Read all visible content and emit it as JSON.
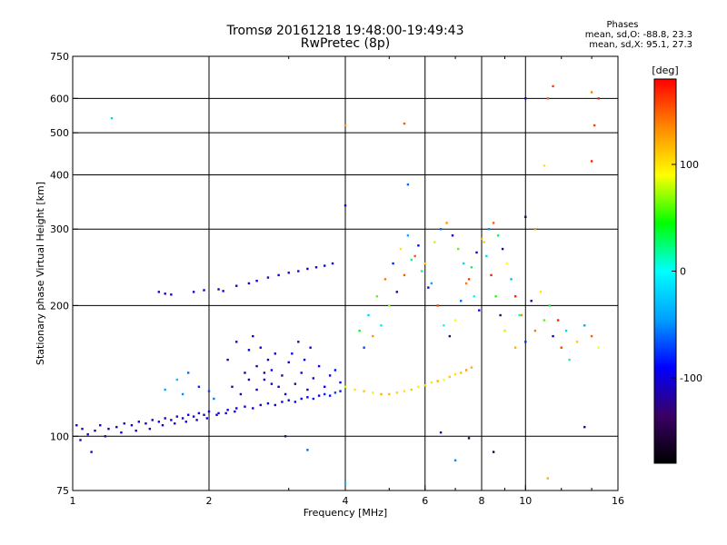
{
  "header": {
    "title_line1": "Tromsø 20161218 19:48:00-19:49:43",
    "title_line2": "RwPretec (8p)"
  },
  "stats": {
    "heading": "Phases",
    "line_O": "mean, sd,O: -88.8, 23.3",
    "line_X": "mean, sd,X:  95.1, 27.3"
  },
  "chart_data": {
    "type": "scatter",
    "xlabel": "Frequency [MHz]",
    "ylabel": "Stationary phase Virtual Height [km]",
    "xscale": "log",
    "yscale": "log",
    "xlim": [
      1,
      16
    ],
    "ylim": [
      75,
      750
    ],
    "xticks": [
      1,
      2,
      4,
      6,
      8,
      10,
      16
    ],
    "xtick_labels": [
      "1",
      "2",
      "4",
      "6",
      "8",
      "10",
      "16"
    ],
    "yticks": [
      75,
      100,
      200,
      300,
      400,
      500,
      600,
      750
    ],
    "ytick_labels": [
      "75",
      "100",
      "200",
      "300",
      "400",
      "500",
      "600",
      "750"
    ],
    "grid_x": [
      2,
      4,
      6,
      8,
      10
    ],
    "grid_y": [
      100,
      200,
      300,
      400,
      500,
      600
    ],
    "colorbar": {
      "label": "[deg]",
      "range": [
        -180,
        180
      ],
      "ticks": [
        -100,
        0,
        100
      ],
      "tick_labels": [
        "-100",
        "0",
        "100"
      ],
      "colormap": [
        "#000000",
        "#3a0066",
        "#0000ff",
        "#00a0ff",
        "#00ffff",
        "#00ff00",
        "#ffff00",
        "#ff8800",
        "#ff0000"
      ]
    },
    "series": [
      {
        "points": [
          [
            1.02,
            106,
            -110
          ],
          [
            1.05,
            104,
            -105
          ],
          [
            1.08,
            101,
            -98
          ],
          [
            1.12,
            103,
            -112
          ],
          [
            1.15,
            106,
            -100
          ],
          [
            1.2,
            104,
            -115
          ],
          [
            1.25,
            105,
            -108
          ],
          [
            1.3,
            107,
            -102
          ],
          [
            1.35,
            106,
            -110
          ],
          [
            1.4,
            108,
            -95
          ],
          [
            1.45,
            107,
            -105
          ],
          [
            1.5,
            109,
            -112
          ],
          [
            1.55,
            108,
            -100
          ],
          [
            1.6,
            110,
            -108
          ],
          [
            1.65,
            109,
            -96
          ],
          [
            1.7,
            111,
            -104
          ],
          [
            1.75,
            110,
            -110
          ],
          [
            1.8,
            112,
            -99
          ],
          [
            1.85,
            111,
            -106
          ],
          [
            1.9,
            113,
            -101
          ],
          [
            1.95,
            112,
            -109
          ],
          [
            2.0,
            114,
            -97
          ],
          [
            2.1,
            113,
            -104
          ],
          [
            2.2,
            115,
            -100
          ],
          [
            2.3,
            116,
            -95
          ],
          [
            2.4,
            117,
            -102
          ],
          [
            2.5,
            116,
            -98
          ],
          [
            2.6,
            118,
            -106
          ],
          [
            2.7,
            119,
            -94
          ],
          [
            2.8,
            118,
            -100
          ],
          [
            2.9,
            120,
            -92
          ],
          [
            3.0,
            121,
            -99
          ],
          [
            3.1,
            120,
            -88
          ],
          [
            3.2,
            122,
            -96
          ],
          [
            3.3,
            123,
            -90
          ],
          [
            3.4,
            122,
            -85
          ],
          [
            3.5,
            124,
            -93
          ],
          [
            3.6,
            125,
            -80
          ],
          [
            3.7,
            124,
            -88
          ],
          [
            3.8,
            126,
            -75
          ],
          [
            3.9,
            127,
            -82
          ],
          [
            1.1,
            92,
            -110
          ],
          [
            1.04,
            98,
            -100
          ],
          [
            1.18,
            100,
            -120
          ],
          [
            1.28,
            102,
            -95
          ],
          [
            1.38,
            103,
            -108
          ],
          [
            1.48,
            104,
            -112
          ],
          [
            1.58,
            106,
            -100
          ],
          [
            1.68,
            107,
            -104
          ],
          [
            1.78,
            108,
            -96
          ],
          [
            1.88,
            109,
            -110
          ],
          [
            1.98,
            110,
            -102
          ],
          [
            2.08,
            112,
            -98
          ],
          [
            2.18,
            113,
            -106
          ],
          [
            2.28,
            114,
            -94
          ],
          [
            1.6,
            128,
            -40
          ],
          [
            1.7,
            135,
            -30
          ],
          [
            1.8,
            140,
            -60
          ],
          [
            1.75,
            125,
            -50
          ],
          [
            1.9,
            130,
            -80
          ],
          [
            2.0,
            127,
            -70
          ],
          [
            2.05,
            122,
            -55
          ],
          [
            2.2,
            150,
            -110
          ],
          [
            2.3,
            165,
            -100
          ],
          [
            2.4,
            140,
            -120
          ],
          [
            2.45,
            158,
            -95
          ],
          [
            2.5,
            170,
            -105
          ],
          [
            2.55,
            145,
            -115
          ],
          [
            2.6,
            160,
            -98
          ],
          [
            2.65,
            135,
            -108
          ],
          [
            2.7,
            150,
            -112
          ],
          [
            2.75,
            142,
            -90
          ],
          [
            2.8,
            155,
            -104
          ],
          [
            2.85,
            130,
            -100
          ],
          [
            2.9,
            138,
            -118
          ],
          [
            2.95,
            125,
            -95
          ],
          [
            3.0,
            148,
            -106
          ],
          [
            3.1,
            132,
            -110
          ],
          [
            3.2,
            140,
            -100
          ],
          [
            3.3,
            128,
            -115
          ],
          [
            3.4,
            136,
            -105
          ],
          [
            3.5,
            145,
            -96
          ],
          [
            3.6,
            130,
            -92
          ],
          [
            3.7,
            138,
            -98
          ],
          [
            3.8,
            142,
            -88
          ],
          [
            3.9,
            133,
            -94
          ],
          [
            2.25,
            130,
            -125
          ],
          [
            2.35,
            125,
            -110
          ],
          [
            2.45,
            135,
            -118
          ],
          [
            2.55,
            128,
            -102
          ],
          [
            2.65,
            140,
            -126
          ],
          [
            2.75,
            132,
            -108
          ],
          [
            3.05,
            155,
            -100
          ],
          [
            3.15,
            165,
            -110
          ],
          [
            3.25,
            150,
            -95
          ],
          [
            3.35,
            160,
            -105
          ],
          [
            1.22,
            540,
            -20
          ],
          [
            1.55,
            215,
            -105
          ],
          [
            1.6,
            213,
            -110
          ],
          [
            1.65,
            212,
            -100
          ],
          [
            1.85,
            215,
            -108
          ],
          [
            1.95,
            217,
            -102
          ],
          [
            2.1,
            218,
            -110
          ],
          [
            2.15,
            216,
            -98
          ],
          [
            2.3,
            222,
            -104
          ],
          [
            2.45,
            225,
            -108
          ],
          [
            2.55,
            228,
            -96
          ],
          [
            2.7,
            232,
            -110
          ],
          [
            2.85,
            235,
            -100
          ],
          [
            3.0,
            238,
            -104
          ],
          [
            3.15,
            240,
            -96
          ],
          [
            3.3,
            243,
            -108
          ],
          [
            3.45,
            245,
            -92
          ],
          [
            3.6,
            247,
            -100
          ],
          [
            3.75,
            250,
            -98
          ],
          [
            3.3,
            93,
            -60
          ],
          [
            4.0,
            78,
            -30
          ],
          [
            2.95,
            100,
            -130
          ],
          [
            6.5,
            102,
            -120
          ],
          [
            7.5,
            99,
            -150
          ],
          [
            8.5,
            92,
            -160
          ],
          [
            7.0,
            88,
            -50
          ],
          [
            13.5,
            105,
            -115
          ],
          [
            11.2,
            80,
            120
          ],
          [
            4.0,
            130,
            80
          ],
          [
            4.2,
            128,
            100
          ],
          [
            4.4,
            127,
            110
          ],
          [
            4.6,
            126,
            95
          ],
          [
            4.8,
            125,
            120
          ],
          [
            5.0,
            125,
            115
          ],
          [
            5.2,
            126,
            105
          ],
          [
            5.4,
            127,
            100
          ],
          [
            5.6,
            128,
            110
          ],
          [
            5.8,
            130,
            95
          ],
          [
            6.0,
            131,
            105
          ],
          [
            6.2,
            133,
            100
          ],
          [
            6.4,
            134,
            120
          ],
          [
            6.6,
            135,
            90
          ],
          [
            6.8,
            137,
            110
          ],
          [
            7.0,
            139,
            100
          ],
          [
            7.2,
            140,
            115
          ],
          [
            7.4,
            142,
            130
          ],
          [
            7.6,
            144,
            120
          ],
          [
            4.3,
            175,
            40
          ],
          [
            4.5,
            190,
            -20
          ],
          [
            4.7,
            210,
            60
          ],
          [
            4.9,
            230,
            140
          ],
          [
            5.1,
            250,
            -80
          ],
          [
            5.3,
            270,
            100
          ],
          [
            5.5,
            290,
            -40
          ],
          [
            5.7,
            260,
            150
          ],
          [
            5.9,
            240,
            20
          ],
          [
            6.1,
            220,
            -110
          ],
          [
            6.3,
            280,
            80
          ],
          [
            6.5,
            300,
            -60
          ],
          [
            6.7,
            310,
            130
          ],
          [
            6.9,
            290,
            -100
          ],
          [
            7.1,
            270,
            60
          ],
          [
            7.3,
            250,
            -20
          ],
          [
            7.5,
            230,
            160
          ],
          [
            7.7,
            210,
            0
          ],
          [
            7.9,
            195,
            -90
          ],
          [
            8.1,
            280,
            110
          ],
          [
            8.3,
            300,
            -50
          ],
          [
            8.5,
            310,
            150
          ],
          [
            8.7,
            290,
            30
          ],
          [
            8.9,
            270,
            -120
          ],
          [
            9.1,
            250,
            90
          ],
          [
            9.3,
            230,
            -30
          ],
          [
            9.5,
            210,
            170
          ],
          [
            9.7,
            190,
            10
          ],
          [
            4.4,
            160,
            -70
          ],
          [
            4.6,
            170,
            130
          ],
          [
            4.8,
            180,
            -10
          ],
          [
            5.0,
            200,
            70
          ],
          [
            5.2,
            215,
            -120
          ],
          [
            5.4,
            235,
            150
          ],
          [
            5.6,
            255,
            20
          ],
          [
            5.8,
            275,
            -90
          ],
          [
            6.0,
            250,
            110
          ],
          [
            6.2,
            225,
            -40
          ],
          [
            6.4,
            200,
            160
          ],
          [
            6.6,
            180,
            0
          ],
          [
            6.8,
            170,
            -130
          ],
          [
            7.0,
            185,
            90
          ],
          [
            7.2,
            205,
            -60
          ],
          [
            7.4,
            225,
            140
          ],
          [
            7.6,
            245,
            30
          ],
          [
            7.8,
            265,
            -100
          ],
          [
            8.0,
            285,
            120
          ],
          [
            8.2,
            260,
            -20
          ],
          [
            8.4,
            235,
            170
          ],
          [
            8.6,
            210,
            50
          ],
          [
            8.8,
            190,
            -140
          ],
          [
            9.0,
            175,
            80
          ],
          [
            9.5,
            160,
            120
          ],
          [
            10.0,
            165,
            -80
          ],
          [
            10.5,
            175,
            140
          ],
          [
            11.0,
            185,
            60
          ],
          [
            11.5,
            170,
            -100
          ],
          [
            12.0,
            160,
            160
          ],
          [
            12.5,
            150,
            20
          ],
          [
            13.0,
            165,
            110
          ],
          [
            13.5,
            180,
            -40
          ],
          [
            14.0,
            170,
            150
          ],
          [
            14.5,
            160,
            90
          ],
          [
            9.8,
            190,
            130
          ],
          [
            10.3,
            205,
            -110
          ],
          [
            10.8,
            215,
            100
          ],
          [
            11.3,
            200,
            40
          ],
          [
            11.8,
            185,
            170
          ],
          [
            12.3,
            175,
            -20
          ],
          [
            10.0,
            320,
            -150
          ],
          [
            10.5,
            300,
            130
          ],
          [
            11.0,
            420,
            100
          ],
          [
            11.2,
            600,
            150
          ],
          [
            14.0,
            620,
            140
          ],
          [
            14.2,
            520,
            160
          ],
          [
            14.0,
            430,
            170
          ],
          [
            5.5,
            380,
            -60
          ],
          [
            4.0,
            340,
            -90
          ],
          [
            4.0,
            520,
            130
          ],
          [
            5.4,
            525,
            150
          ],
          [
            10.0,
            600,
            -100
          ],
          [
            14.5,
            600,
            170
          ],
          [
            11.5,
            640,
            160
          ]
        ]
      }
    ]
  }
}
